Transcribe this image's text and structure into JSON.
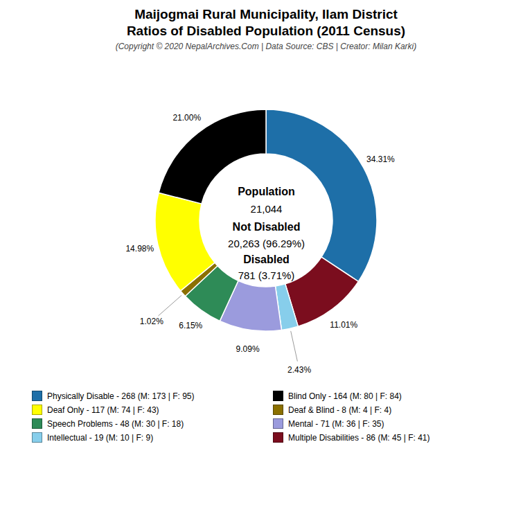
{
  "chart_data": {
    "type": "pie",
    "title": [
      "Maijogmai Rural Municipality, Ilam District",
      "Ratios of Disabled Population (2011 Census)"
    ],
    "subtitle": "(Copyright © 2020 NepalArchives.Com | Data Source: CBS | Creator: Milan Karki)",
    "categories": [
      "Physically Disable - 268 (M: 173 | F: 95)",
      "Multiple Disabilities - 86 (M: 45 | F: 41)",
      "Intellectual - 19 (M: 10 | F: 9)",
      "Mental - 71 (M: 36 | F: 35)",
      "Speech Problems - 48 (M: 30 | F: 18)",
      "Deaf & Blind - 8 (M: 4 | F: 4)",
      "Deaf Only - 117 (M: 74 | F: 43)",
      "Blind Only - 164 (M: 80 | F: 84)"
    ],
    "values": [
      34.31,
      11.01,
      2.43,
      9.09,
      6.15,
      1.02,
      14.98,
      21
    ],
    "value_labels": [
      "34.31%",
      "11.01%",
      "2.43%",
      "9.09%",
      "6.15%",
      "1.02%",
      "14.98%",
      "21.00%"
    ],
    "colors": [
      "#1e6fa8",
      "#7b0d1e",
      "#87ceeb",
      "#9b9bdd",
      "#2e8b57",
      "#8b7000",
      "#ffff00",
      "#000000"
    ],
    "data_labels": true,
    "annotations": [
      "Population",
      "21,044",
      "Not Disabled",
      "20,263 (96.29%)",
      "Disabled",
      "781 (3.71%)"
    ],
    "legend": "bottom",
    "legend_items_left": [
      "Physically Disable - 268 (M: 173 | F: 95)",
      "Deaf Only - 117 (M: 74 | F: 43)",
      "Speech Problems - 48 (M: 30 | F: 18)",
      "Intellectual - 19 (M: 10 | F: 9)"
    ],
    "legend_items_right": [
      "Blind Only - 164 (M: 80 | F: 84)",
      "Deaf & Blind - 8 (M: 4 | F: 4)",
      "Mental - 71 (M: 36 | F: 35)",
      "Multiple Disabilities - 86 (M: 45 | F: 41)"
    ]
  }
}
